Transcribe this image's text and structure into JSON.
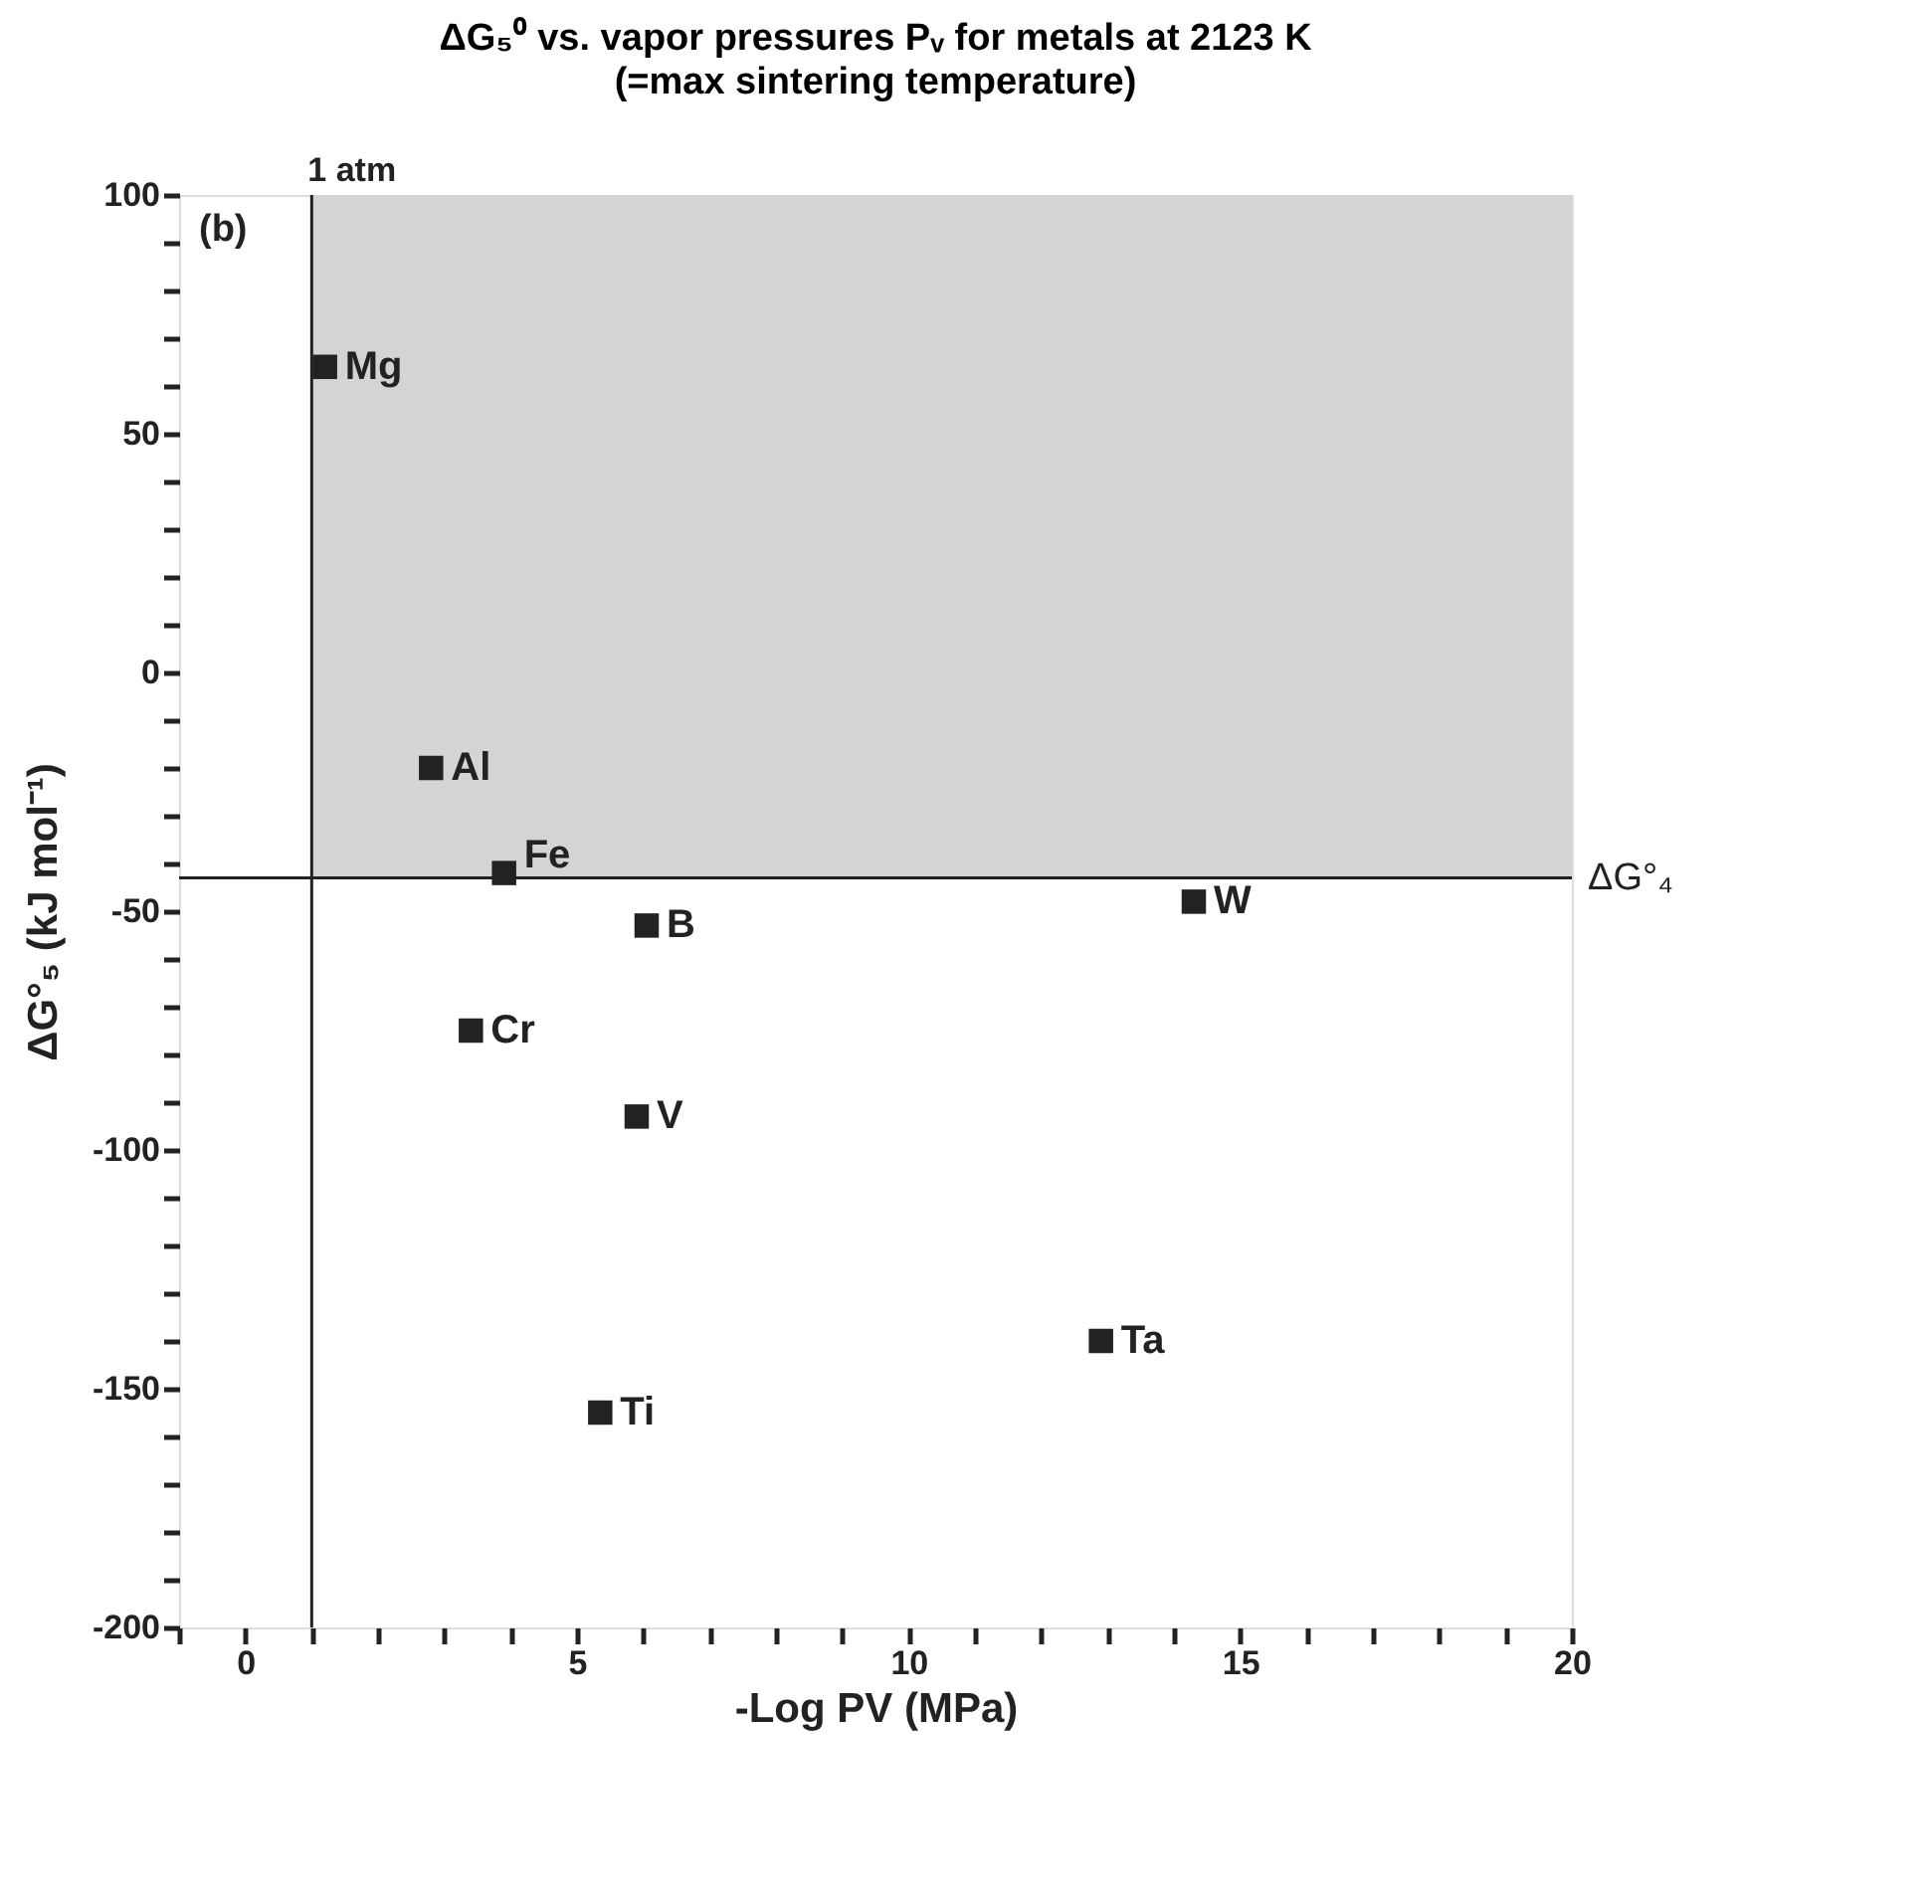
{
  "chart_data": {
    "type": "scatter",
    "title": "ΔG₅⁰ vs. vapor pressures Pᵥ for metals at 2123 K",
    "subtitle": "(=max sintering temperature)",
    "xlabel": "-Log PV (MPa)",
    "ylabel": "ΔG°₅ (kJ mol⁻¹)",
    "annotations": [
      "(b)"
    ],
    "marker": "square",
    "grid": false,
    "legend": false,
    "xlim": [
      -1,
      20
    ],
    "ylim": [
      -200,
      100
    ],
    "xticks": [
      {
        "value": -1,
        "label": null
      },
      0,
      {
        "value": 1,
        "label": null
      },
      {
        "value": 2,
        "label": null
      },
      {
        "value": 3,
        "label": null
      },
      {
        "value": 4,
        "label": null
      },
      5,
      {
        "value": 6,
        "label": null
      },
      {
        "value": 7,
        "label": null
      },
      {
        "value": 8,
        "label": null
      },
      {
        "value": 9,
        "label": null
      },
      10,
      {
        "value": 11,
        "label": null
      },
      {
        "value": 12,
        "label": null
      },
      {
        "value": 13,
        "label": null
      },
      {
        "value": 14,
        "label": null
      },
      15,
      {
        "value": 16,
        "label": null
      },
      {
        "value": 17,
        "label": null
      },
      {
        "value": 18,
        "label": null
      },
      {
        "value": 19,
        "label": null
      },
      20
    ],
    "yticks": [
      -200,
      {
        "value": -190,
        "label": null
      },
      {
        "value": -180,
        "label": null
      },
      {
        "value": -170,
        "label": null
      },
      {
        "value": -160,
        "label": null
      },
      -150,
      {
        "value": -140,
        "label": null
      },
      {
        "value": -130,
        "label": null
      },
      {
        "value": -120,
        "label": null
      },
      {
        "value": -110,
        "label": null
      },
      -100,
      {
        "value": -90,
        "label": null
      },
      {
        "value": -80,
        "label": null
      },
      {
        "value": -70,
        "label": null
      },
      {
        "value": -60,
        "label": null
      },
      -50,
      {
        "value": -40,
        "label": null
      },
      {
        "value": -30,
        "label": null
      },
      {
        "value": -20,
        "label": null
      },
      {
        "value": -10,
        "label": null
      },
      0,
      {
        "value": 10,
        "label": null
      },
      {
        "value": 20,
        "label": null
      },
      {
        "value": 30,
        "label": null
      },
      {
        "value": 40,
        "label": null
      },
      50,
      {
        "value": 60,
        "label": null
      },
      {
        "value": 70,
        "label": null
      },
      {
        "value": 80,
        "label": null
      },
      {
        "value": 90,
        "label": null
      },
      100
    ],
    "ref_lines": [
      {
        "axis": "x",
        "value": 1,
        "label": "1 atm",
        "color": "#222222"
      },
      {
        "axis": "y",
        "value": -43,
        "label": "ΔG°₄",
        "color": "#222222"
      }
    ],
    "bands": [
      {
        "axis": "y",
        "from": -43,
        "to": 100,
        "color": "#d4d4d4"
      }
    ],
    "series": [
      {
        "name": "Mg",
        "color": "#222222",
        "x": [
          1.2
        ],
        "values": [
          64
        ]
      },
      {
        "name": "Al",
        "color": "#222222",
        "x": [
          2.8
        ],
        "values": [
          -20
        ]
      },
      {
        "name": "Fe",
        "color": "#222222",
        "x": [
          3.9
        ],
        "values": [
          -42
        ]
      },
      {
        "name": "B",
        "color": "#222222",
        "x": [
          6.05
        ],
        "values": [
          -53
        ]
      },
      {
        "name": "Cr",
        "color": "#222222",
        "x": [
          3.4
        ],
        "values": [
          -75
        ]
      },
      {
        "name": "V",
        "color": "#222222",
        "x": [
          5.9
        ],
        "values": [
          -93
        ]
      },
      {
        "name": "Ti",
        "color": "#222222",
        "x": [
          5.35
        ],
        "values": [
          -155
        ]
      },
      {
        "name": "W",
        "color": "#222222",
        "x": [
          14.3
        ],
        "values": [
          -48
        ]
      },
      {
        "name": "Ta",
        "color": "#222222",
        "x": [
          12.9
        ],
        "values": [
          -140
        ]
      }
    ]
  }
}
